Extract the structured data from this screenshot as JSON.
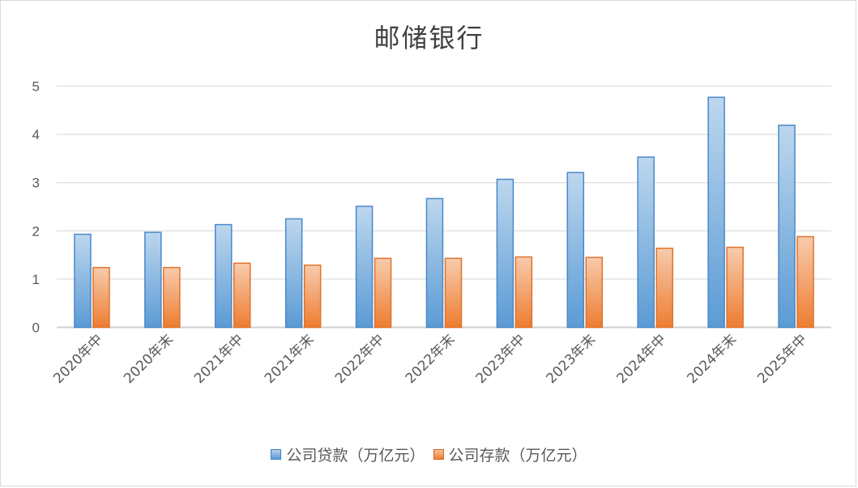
{
  "title": "邮储银行",
  "legend": [
    {
      "label": "公司贷款（万亿元）",
      "color": "#5b9bd5"
    },
    {
      "label": "公司存款（万亿元）",
      "color": "#ed7d31"
    }
  ],
  "chart_data": {
    "type": "bar",
    "title": "邮储银行",
    "xlabel": "",
    "ylabel": "",
    "ylim": [
      0,
      5
    ],
    "yticks": [
      0,
      1,
      2,
      3,
      4,
      5
    ],
    "grid": true,
    "legend_position": "bottom",
    "categories": [
      "2020年中",
      "2020年末",
      "2021年中",
      "2021年末",
      "2022年中",
      "2022年末",
      "2023年中",
      "2023年末",
      "2024年中",
      "2024年末",
      "2025年中"
    ],
    "series": [
      {
        "name": "公司贷款（万亿元）",
        "color": "#5b9bd5",
        "values": [
          1.93,
          1.97,
          2.13,
          2.25,
          2.51,
          2.67,
          3.07,
          3.21,
          3.53,
          4.77,
          4.19
        ]
      },
      {
        "name": "公司存款（万亿元）",
        "color": "#ed7d31",
        "values": [
          1.24,
          1.24,
          1.33,
          1.29,
          1.43,
          1.43,
          1.46,
          1.45,
          1.64,
          1.66,
          1.88
        ]
      }
    ]
  }
}
